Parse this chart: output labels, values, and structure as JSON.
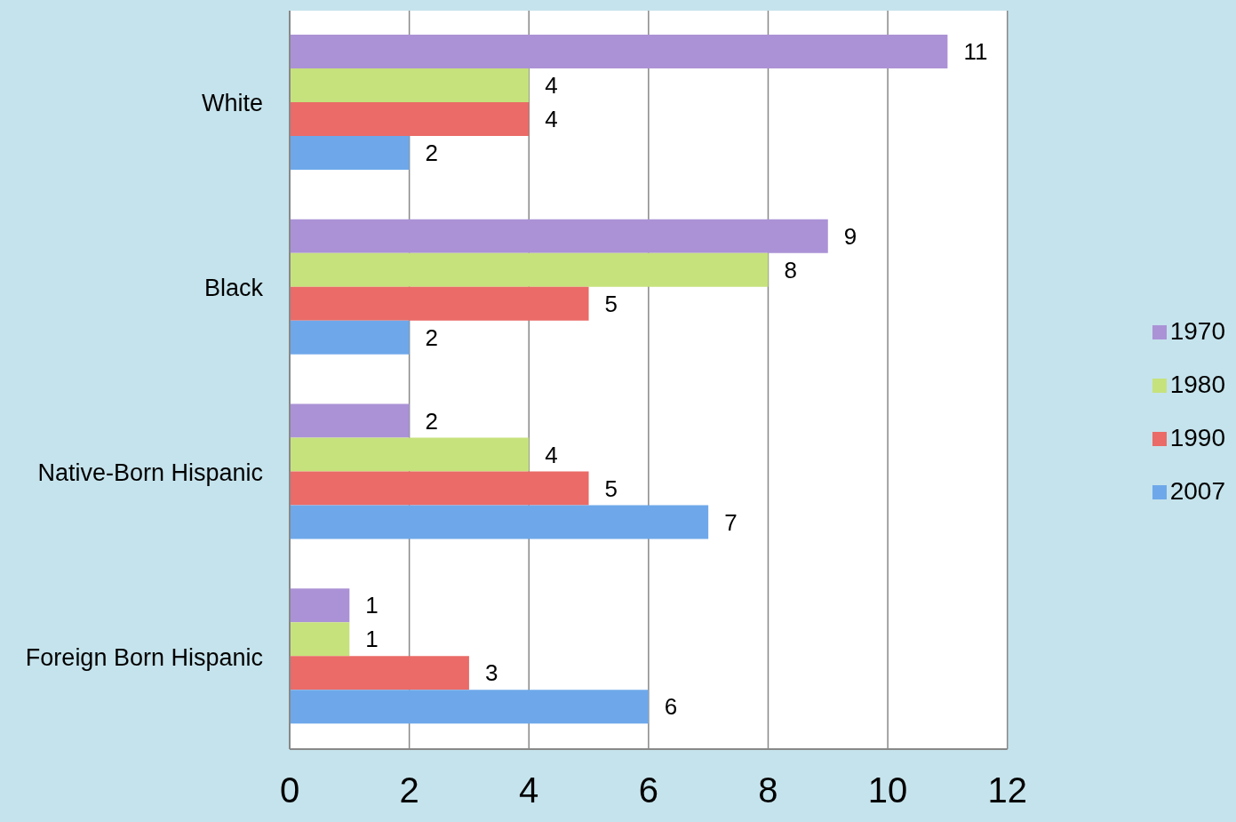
{
  "chart_data": {
    "type": "bar",
    "orientation": "horizontal",
    "categories": [
      "White",
      "Black",
      "Native-Born Hispanic",
      "Foreign Born Hispanic"
    ],
    "series": [
      {
        "name": "1970",
        "color": "#ab92d6",
        "values": [
          11,
          9,
          2,
          1
        ]
      },
      {
        "name": "1980",
        "color": "#c6e27c",
        "values": [
          4,
          8,
          4,
          1
        ]
      },
      {
        "name": "1990",
        "color": "#ea6b67",
        "values": [
          4,
          5,
          5,
          3
        ]
      },
      {
        "name": "2007",
        "color": "#6ea8ea",
        "values": [
          2,
          2,
          7,
          6
        ]
      }
    ],
    "xlim": [
      0,
      12
    ],
    "xticks": [
      0,
      2,
      4,
      6,
      8,
      10,
      12
    ],
    "grid": "x",
    "legend": "right",
    "data_labels": true
  }
}
